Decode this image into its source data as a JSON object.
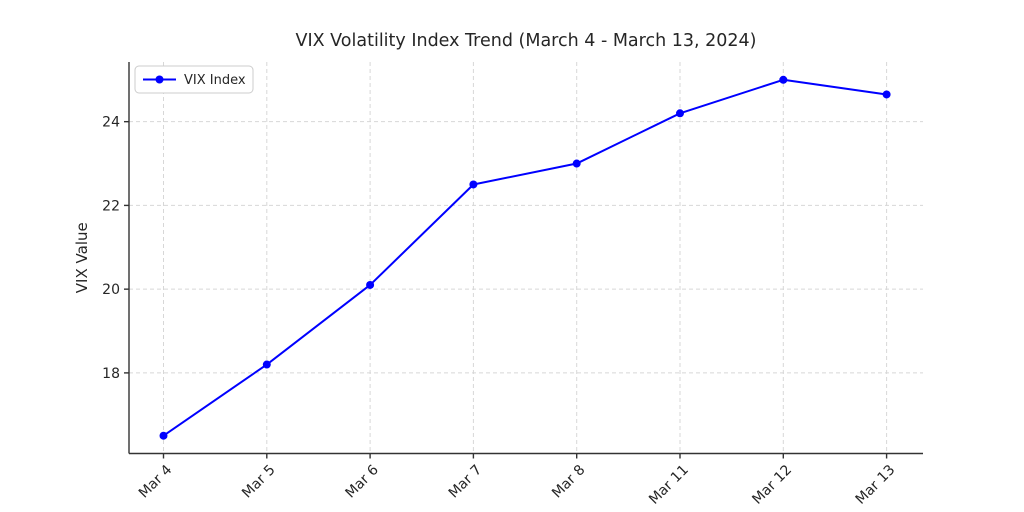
{
  "chart_data": {
    "type": "line",
    "title": "VIX Volatility Index Trend (March 4 - March 13, 2024)",
    "xlabel": "",
    "ylabel": "VIX Value",
    "categories": [
      "Mar 4",
      "Mar 5",
      "Mar 6",
      "Mar 7",
      "Mar 8",
      "Mar 11",
      "Mar 12",
      "Mar 13"
    ],
    "series": [
      {
        "name": "VIX Index",
        "values": [
          16.5,
          18.2,
          20.1,
          22.5,
          23.0,
          24.2,
          25.0,
          24.65
        ]
      }
    ],
    "yticks": [
      18,
      20,
      22,
      24
    ],
    "ylim": [
      16.075,
      25.425
    ],
    "grid": true,
    "grid_style": "dashed",
    "legend": {
      "position": "upper-left",
      "entries": [
        "VIX Index"
      ]
    },
    "colors": {
      "line": "#0000ff",
      "marker": "#0000ff",
      "grid": "#d7d7d7",
      "spine": "#333333",
      "text": "#262626",
      "legend_border": "#cccccc",
      "background": "#ffffff"
    }
  }
}
